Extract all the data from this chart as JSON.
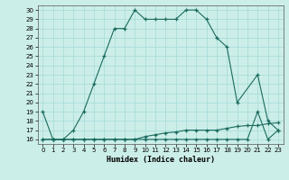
{
  "xlabel": "Humidex (Indice chaleur)",
  "bg_color": "#cceee8",
  "grid_color": "#aaddda",
  "line_color": "#1a6b5e",
  "xlim": [
    -0.5,
    23.5
  ],
  "ylim": [
    15.5,
    30.5
  ],
  "xticks": [
    0,
    1,
    2,
    3,
    4,
    5,
    6,
    7,
    8,
    9,
    10,
    11,
    12,
    13,
    14,
    15,
    16,
    17,
    18,
    19,
    20,
    21,
    22,
    23
  ],
  "yticks": [
    16,
    17,
    18,
    19,
    20,
    21,
    22,
    23,
    24,
    25,
    26,
    27,
    28,
    29,
    30
  ],
  "line1_x": [
    0,
    1,
    2,
    3,
    4,
    5,
    6,
    7,
    8,
    9,
    10,
    11,
    12,
    13,
    14,
    15,
    16,
    17,
    18,
    19,
    21,
    22,
    23
  ],
  "line1_y": [
    19,
    16,
    16,
    17,
    19,
    22,
    25,
    28,
    28,
    30,
    29,
    29,
    29,
    29,
    30,
    30,
    29,
    27,
    26,
    20,
    23,
    18,
    17
  ],
  "line2_x": [
    0,
    1,
    2,
    3,
    4,
    5,
    6,
    7,
    8,
    9,
    10,
    11,
    12,
    13,
    14,
    15,
    16,
    17,
    18,
    19,
    20,
    21,
    22,
    23
  ],
  "line2_y": [
    16,
    16,
    16,
    16,
    16,
    16,
    16,
    16,
    16,
    16,
    16,
    16,
    16,
    16,
    16,
    16,
    16,
    16,
    16,
    16,
    16,
    19,
    16,
    17
  ],
  "line3_x": [
    0,
    1,
    2,
    3,
    4,
    5,
    6,
    7,
    8,
    9,
    10,
    11,
    12,
    13,
    14,
    15,
    16,
    17,
    18,
    19,
    20,
    21,
    22,
    23
  ],
  "line3_y": [
    16,
    16,
    16,
    16,
    16,
    16,
    16,
    16,
    16,
    16,
    16.3,
    16.5,
    16.7,
    16.8,
    17,
    17,
    17,
    17,
    17.2,
    17.4,
    17.5,
    17.5,
    17.7,
    17.8
  ]
}
